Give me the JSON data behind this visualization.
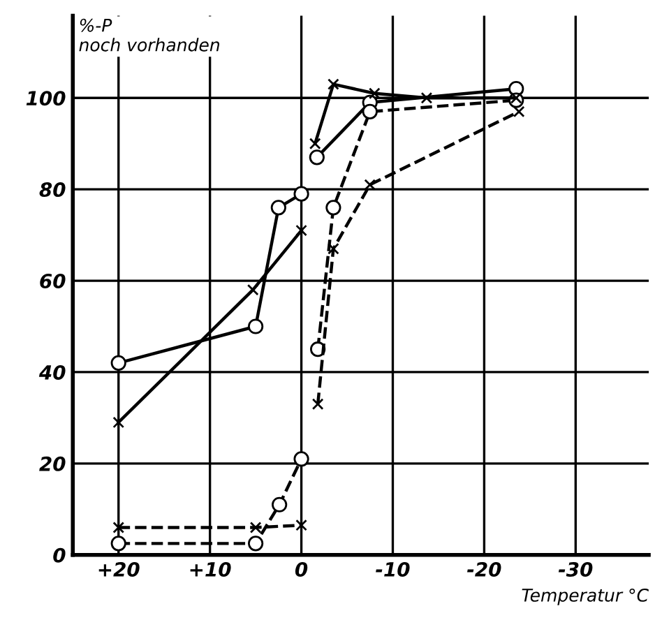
{
  "chart_data": {
    "type": "line",
    "ylabel": "%-P\nnoch vorhanden",
    "xlabel": "Temperatur °C",
    "xlim": [
      25,
      -38
    ],
    "ylim": [
      0,
      118
    ],
    "xticks": [
      {
        "value": 20,
        "label": "+20"
      },
      {
        "value": 10,
        "label": "+10"
      },
      0,
      {
        "value": -10,
        "label": "-10"
      },
      {
        "value": -20,
        "label": "-20"
      },
      {
        "value": -30,
        "label": "-30"
      }
    ],
    "yticks": [
      0,
      20,
      40,
      60,
      80,
      100
    ],
    "grid": true,
    "legend": false,
    "series": [
      {
        "color": "#000000",
        "marker": "circle",
        "line_style": "solid",
        "x": [
          20,
          5,
          2.5,
          0
        ],
        "values": [
          42,
          50,
          76,
          79
        ]
      },
      {
        "color": "#000000",
        "marker": "circle",
        "line_style": "solid",
        "x": [
          -1.7,
          -7.5,
          -23.5
        ],
        "values": [
          87,
          99,
          102
        ]
      },
      {
        "color": "#000000",
        "marker": "cross",
        "line_style": "solid",
        "x": [
          20,
          5.3,
          0
        ],
        "values": [
          29,
          58,
          71
        ]
      },
      {
        "color": "#000000",
        "marker": "cross",
        "line_style": "solid",
        "x": [
          -1.5,
          -3.5,
          -8,
          -13.7,
          -23.5
        ],
        "values": [
          90,
          103,
          101,
          100,
          100
        ]
      },
      {
        "color": "#000000",
        "marker": "circle",
        "line_style": "dashed",
        "x": [
          20,
          5,
          2.4,
          0
        ],
        "values": [
          2.5,
          2.5,
          11,
          21
        ]
      },
      {
        "color": "#000000",
        "marker": "circle",
        "line_style": "dashed",
        "x": [
          -1.8,
          -3.5,
          -7.5,
          -23.5
        ],
        "values": [
          45,
          76,
          97,
          99.5
        ]
      },
      {
        "color": "#000000",
        "marker": "cross",
        "line_style": "dashed",
        "x": [
          20,
          5,
          0
        ],
        "values": [
          6,
          6,
          6.5
        ]
      },
      {
        "color": "#000000",
        "marker": "cross",
        "line_style": "dashed",
        "x": [
          -1.8,
          -3.5,
          -7.5,
          -23.8
        ],
        "values": [
          33,
          67,
          81,
          97
        ]
      }
    ]
  }
}
